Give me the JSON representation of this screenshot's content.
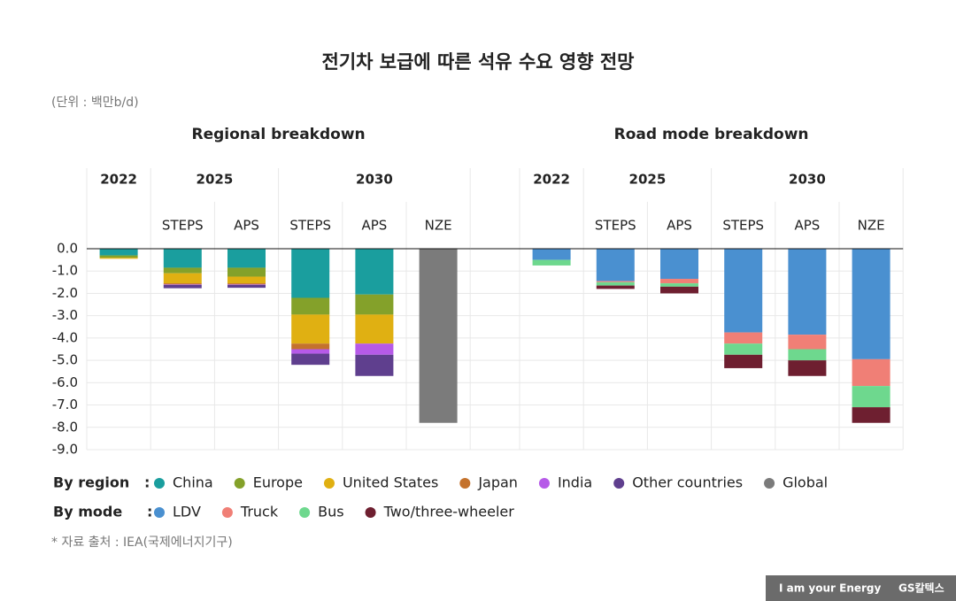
{
  "title": "전기차 보급에 따른 석유 수요 영향 전망",
  "unit": "(단위 : 백만b/d)",
  "source": "* 자료 출처 : IEA(국제에너지기구)",
  "brand": {
    "slogan": "I am your Energy",
    "name": "GS칼텍스"
  },
  "chart_data": [
    {
      "type": "bar",
      "stacked": true,
      "title": "Regional breakdown",
      "legend_title": "By region   :",
      "groups": [
        {
          "label": "2022",
          "span": 1
        },
        {
          "label": "2025",
          "span": 2
        },
        {
          "label": "2030",
          "span": 3
        }
      ],
      "categories": [
        null,
        "STEPS",
        "APS",
        "STEPS",
        "APS",
        "NZE"
      ],
      "ylim": [
        -9,
        0
      ],
      "yticks": [
        {
          "value": 0,
          "label": "0.0"
        },
        {
          "value": -1,
          "label": "-1.0"
        },
        {
          "value": -2,
          "label": "-2.0"
        },
        {
          "value": -3,
          "label": "-3.0"
        },
        {
          "value": -4,
          "label": "-4.0"
        },
        {
          "value": -5,
          "label": "-5.0"
        },
        {
          "value": -6,
          "label": "-6.0"
        },
        {
          "value": -7,
          "label": "-7.0"
        },
        {
          "value": -8,
          "label": "-8.0"
        },
        {
          "value": -9,
          "label": "-9.0"
        }
      ],
      "series": [
        {
          "name": "China",
          "color": "#1a9e9e",
          "values": [
            -0.3,
            -0.85,
            -0.85,
            -2.2,
            -2.05,
            null
          ]
        },
        {
          "name": "Europe",
          "color": "#84a12a",
          "values": [
            -0.1,
            -0.25,
            -0.4,
            -0.75,
            -0.9,
            null
          ]
        },
        {
          "name": "United States",
          "color": "#e0b012",
          "values": [
            -0.05,
            -0.45,
            -0.3,
            -1.3,
            -1.3,
            null
          ]
        },
        {
          "name": "Japan",
          "color": "#c4722c",
          "values": [
            null,
            -0.05,
            -0.05,
            -0.25,
            null,
            null
          ]
        },
        {
          "name": "India",
          "color": "#b65ae8",
          "values": [
            null,
            -0.02,
            -0.02,
            -0.2,
            -0.5,
            null
          ]
        },
        {
          "name": "Other countries",
          "color": "#5f3f8e",
          "values": [
            null,
            -0.15,
            -0.13,
            -0.5,
            -0.95,
            null
          ]
        },
        {
          "name": "Global",
          "color": "#7b7b7b",
          "values": [
            null,
            null,
            null,
            null,
            null,
            -7.8
          ]
        }
      ]
    },
    {
      "type": "bar",
      "stacked": true,
      "title": "Road mode breakdown",
      "legend_title": "By mode     :",
      "groups": [
        {
          "label": "2022",
          "span": 1
        },
        {
          "label": "2025",
          "span": 2
        },
        {
          "label": "2030",
          "span": 3
        }
      ],
      "categories": [
        null,
        "STEPS",
        "APS",
        "STEPS",
        "APS",
        "NZE"
      ],
      "ylim": [
        -9,
        0
      ],
      "series": [
        {
          "name": "LDV",
          "color": "#4a90d0",
          "values": [
            -0.5,
            -1.45,
            -1.35,
            -3.75,
            -3.85,
            -4.95
          ]
        },
        {
          "name": "Truck",
          "color": "#f07f76",
          "values": [
            null,
            -0.05,
            -0.2,
            -0.5,
            -0.65,
            -1.2
          ]
        },
        {
          "name": "Bus",
          "color": "#6ed88e",
          "values": [
            -0.25,
            -0.15,
            -0.15,
            -0.5,
            -0.5,
            -0.95
          ]
        },
        {
          "name": "Two/three-wheeler",
          "color": "#6e1f30",
          "values": [
            null,
            -0.15,
            -0.3,
            -0.6,
            -0.7,
            -0.7
          ]
        }
      ]
    }
  ]
}
